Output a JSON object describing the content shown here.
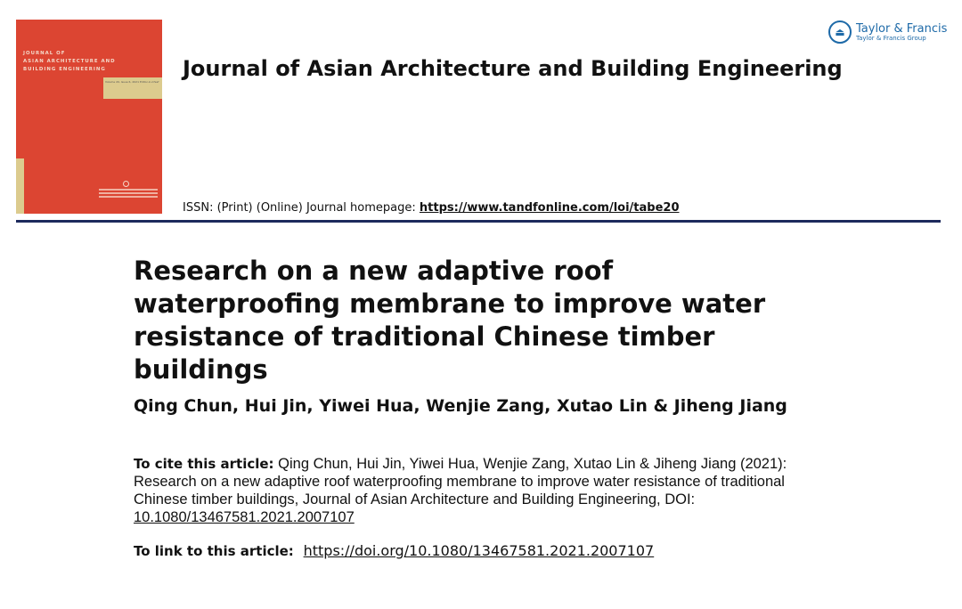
{
  "header": {
    "cover": {
      "journal_title": "JOURNAL OF\nASIAN ARCHITECTURE AND\nBUILDING ENGINEERING",
      "band_text": "Volume 20, Issue 6, 2021 Editor-in-Chief",
      "color": "#dc4532",
      "band_color": "#dccb8e"
    },
    "journal_title": "Journal of Asian Architecture and Building Engineering",
    "issn_label": "ISSN: (Print) (Online) Journal homepage:",
    "homepage_url": "https://www.tandfonline.com/loi/tabe20",
    "publisher": {
      "name": "Taylor & Francis",
      "group": "Taylor & Francis Group",
      "color": "#1e6aa8"
    }
  },
  "article": {
    "title": "Research on a new adaptive roof waterproofing membrane to improve water resistance of traditional Chinese timber buildings",
    "authors": "Qing Chun, Hui Jin, Yiwei Hua, Wenjie Zang, Xutao Lin & Jiheng Jiang",
    "cite_label": "To cite this article:",
    "cite_text": "Qing Chun, Hui Jin, Yiwei Hua, Wenjie Zang, Xutao Lin & Jiheng Jiang (2021): Research on a new adaptive roof waterproofing membrane to improve water resistance of traditional Chinese timber buildings, Journal of Asian Architecture and Building Engineering, DOI:",
    "cite_doi": "10.1080/13467581.2021.2007107",
    "link_label": "To link to this article:",
    "link_url": "https://doi.org/10.1080/13467581.2021.2007107"
  }
}
